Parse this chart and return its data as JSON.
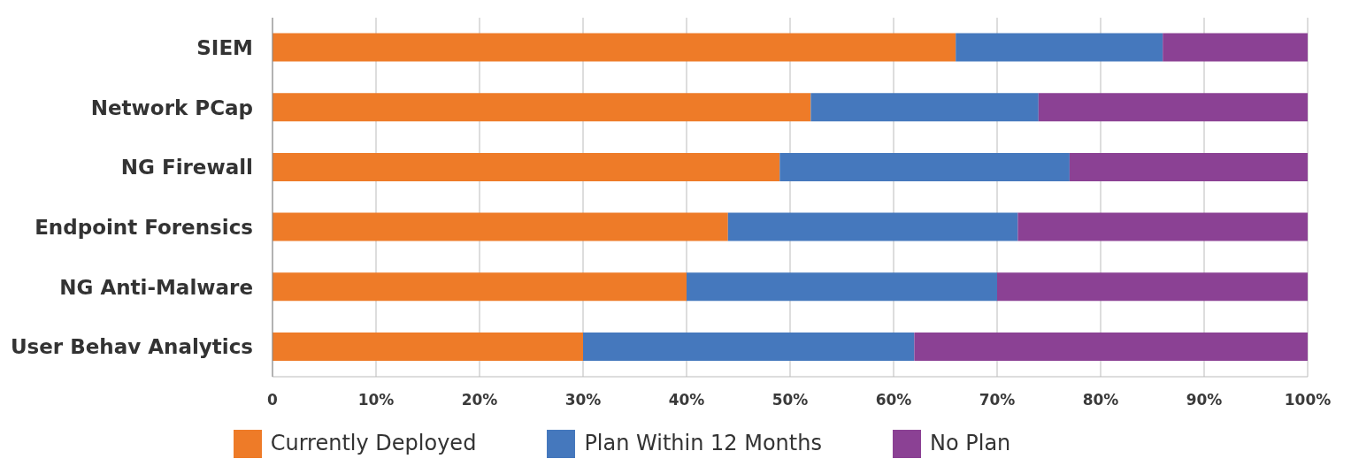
{
  "chart_data": {
    "type": "bar",
    "orientation": "horizontal",
    "stacked": true,
    "categories": [
      "SIEM",
      "Network PCap",
      "NG Firewall",
      "Endpoint Forensics",
      "NG Anti-Malware",
      "User Behav Analytics"
    ],
    "series": [
      {
        "name": "Currently Deployed",
        "color": "#ee7b28",
        "values": [
          66,
          52,
          49,
          44,
          40,
          30
        ]
      },
      {
        "name": "Plan Within 12 Months",
        "color": "#4578bd",
        "values": [
          20,
          22,
          28,
          28,
          30,
          32
        ]
      },
      {
        "name": "No Plan",
        "color": "#8b4194",
        "values": [
          14,
          26,
          23,
          28,
          30,
          38
        ]
      }
    ],
    "xlim": [
      0,
      100
    ],
    "xticks": [
      0,
      {
        "value": 10,
        "label": "10%"
      },
      {
        "value": 20,
        "label": "20%"
      },
      {
        "value": 30,
        "label": "30%"
      },
      {
        "value": 40,
        "label": "40%"
      },
      {
        "value": 50,
        "label": "50%"
      },
      {
        "value": 60,
        "label": "60%"
      },
      {
        "value": 70,
        "label": "70%"
      },
      {
        "value": 80,
        "label": "80%"
      },
      {
        "value": 90,
        "label": "90%"
      },
      {
        "value": 100,
        "label": "100%"
      }
    ],
    "grid": "x",
    "legend": "bottom"
  }
}
